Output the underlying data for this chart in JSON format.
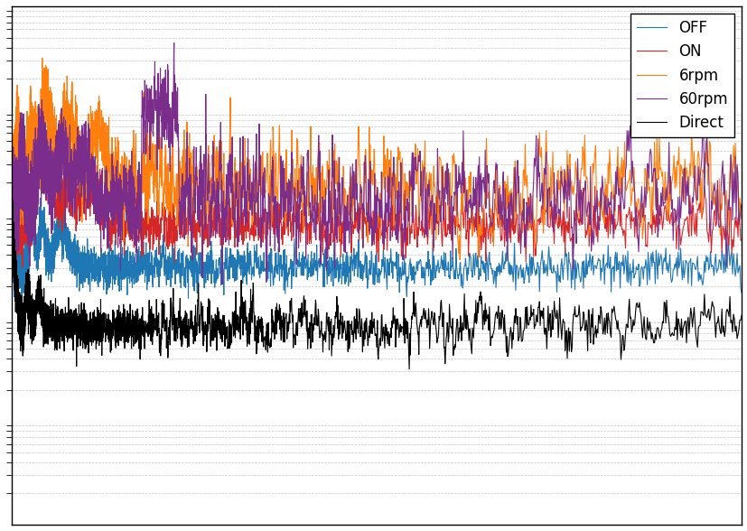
{
  "title": "",
  "xlabel": "",
  "ylabel": "",
  "legend_labels": [
    "OFF",
    "ON",
    "6rpm",
    "60rpm",
    "Direct"
  ],
  "colors": [
    "#1f77b4",
    "#d62728",
    "#ff7f0e",
    "#7b2d8b",
    "#000000"
  ],
  "line_widths": [
    1.0,
    1.0,
    1.0,
    1.0,
    1.0
  ],
  "xlim": [
    1,
    500
  ],
  "ylim_log": true,
  "grid": true,
  "background_color": "#ffffff",
  "legend_loc": "upper right",
  "figsize": [
    8.28,
    5.88
  ],
  "dpi": 100
}
